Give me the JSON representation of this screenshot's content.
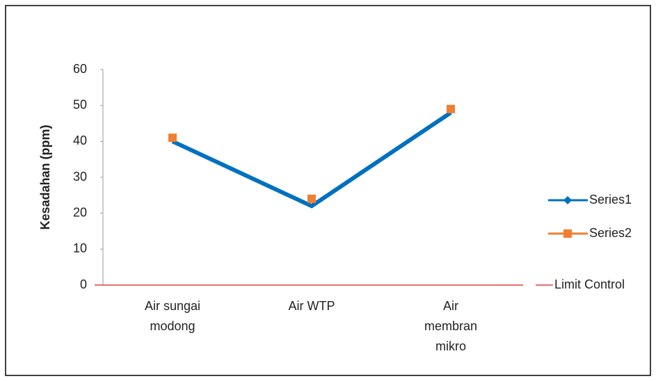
{
  "chart_data": {
    "type": "line",
    "y_label": "Kesadahan (ppm)",
    "categories": [
      "Air sungai modong",
      "Air WTP",
      "Air membran mikro"
    ],
    "series": [
      {
        "name": "Series1",
        "color": "#0070c0",
        "values": [
          40,
          22,
          48
        ],
        "line": true,
        "marker": "diamond"
      },
      {
        "name": "Series2",
        "color": "#f07f32",
        "values": [
          41,
          24,
          49
        ],
        "line": false,
        "marker": "square"
      },
      {
        "name": "Limit Control",
        "color": "#e0403a",
        "values": [
          0,
          0,
          0
        ],
        "line": true,
        "marker": "none"
      }
    ],
    "ylim": [
      0,
      60
    ],
    "yticks": [
      0,
      10,
      20,
      30,
      40,
      50,
      60
    ],
    "grid": false,
    "legend": "right"
  }
}
